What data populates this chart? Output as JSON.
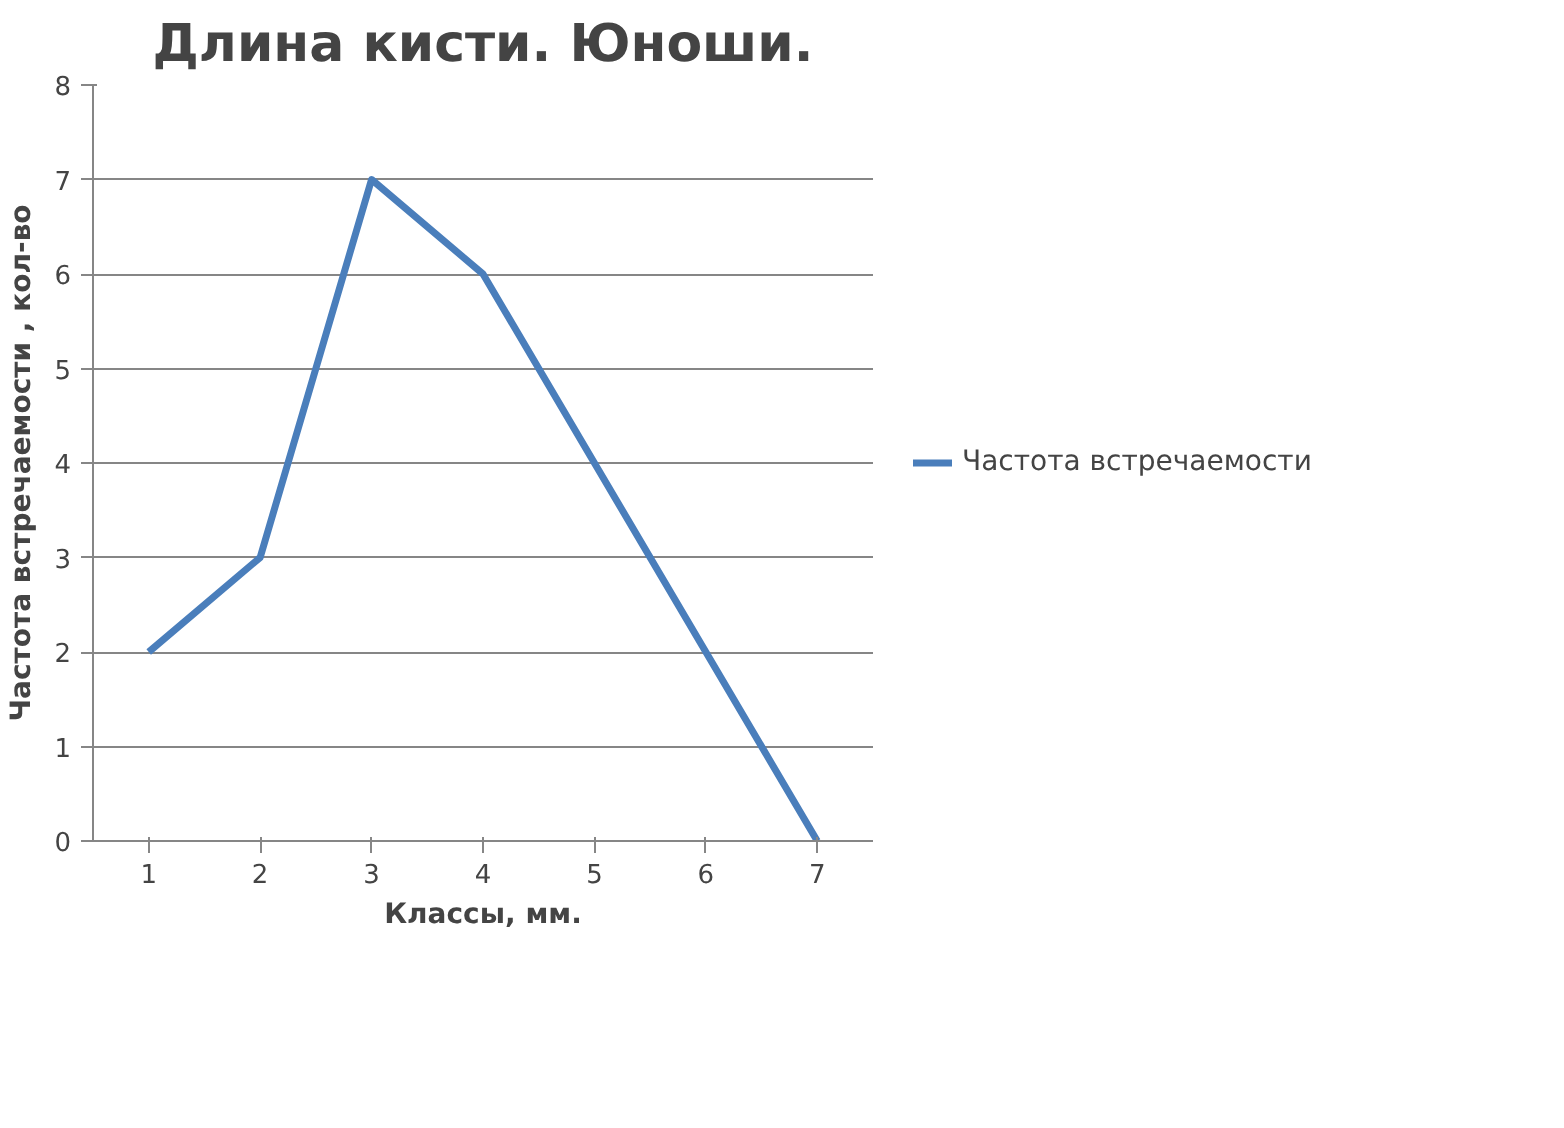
{
  "chart_data": {
    "type": "line",
    "title": "Длина кисти. Юноши.",
    "xlabel": "Классы, мм.",
    "ylabel": "Частота встречаемости , кол-во",
    "categories": [
      "1",
      "2",
      "3",
      "4",
      "5",
      "6",
      "7"
    ],
    "series": [
      {
        "name": "Частота встречаемости",
        "color": "#4a7ebb",
        "values": [
          2,
          3,
          7,
          6,
          4,
          2,
          0
        ]
      }
    ],
    "ylim": [
      0,
      8
    ],
    "yticks": [
      0,
      1,
      2,
      3,
      4,
      5,
      6,
      7,
      8
    ],
    "grid": "y",
    "legend": "right",
    "marker": "none",
    "line_style": "solid"
  }
}
